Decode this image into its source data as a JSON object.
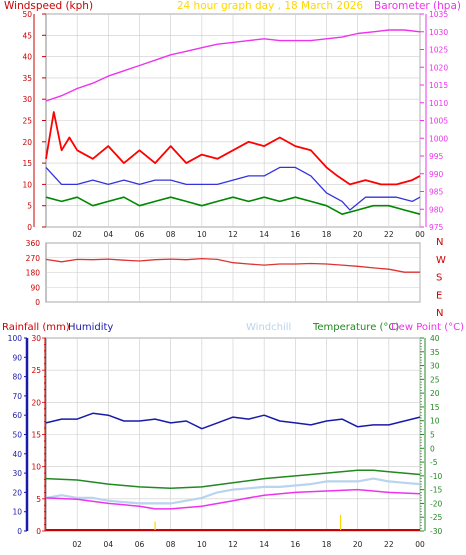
{
  "chart_data": {
    "type": "line",
    "title": "24 hour graph day , 18 March 2026",
    "x_ticks": [
      "02",
      "04",
      "06",
      "08",
      "10",
      "12",
      "14",
      "16",
      "18",
      "20",
      "22",
      "00"
    ],
    "x_range_hours": [
      0,
      24
    ],
    "colors": {
      "title": "#ffd700",
      "wind_axis": "#cc0000",
      "wind_gust": "#ff0000",
      "wind_avg": "#3333dd",
      "wind_min": "#008800",
      "barometer": "#ee33ee",
      "wind_direction": "#dd3333",
      "rainfall": "#cc0000",
      "humidity": "#1a1aaa",
      "windchill": "#b8d4ee",
      "temperature": "#228822",
      "dew_point": "#ee33ee",
      "compass": "#cc0000",
      "grid": "#cccccc",
      "plot_bg": "#ffffff"
    },
    "wind_panel": {
      "left_label": "Windspeed (kph)",
      "right_label": "Barometer (hpa)",
      "wind_ylim": [
        0,
        50
      ],
      "wind_ticks": [
        "0",
        "5",
        "10",
        "15",
        "20",
        "25",
        "30",
        "35",
        "40",
        "45",
        "50"
      ],
      "baro_ylim": [
        975,
        1035
      ],
      "baro_ticks": [
        "975",
        "980",
        "985",
        "990",
        "995",
        "1000",
        "1005",
        "1010",
        "1015",
        "1020",
        "1025",
        "1030",
        "1035"
      ],
      "series": [
        {
          "key": "gust",
          "points": [
            [
              0.0,
              16
            ],
            [
              0.5,
              27
            ],
            [
              1.0,
              18
            ],
            [
              1.5,
              21
            ],
            [
              2.0,
              18
            ],
            [
              3.0,
              16
            ],
            [
              4.0,
              19
            ],
            [
              5.0,
              15
            ],
            [
              6.0,
              18
            ],
            [
              7.0,
              15
            ],
            [
              8.0,
              19
            ],
            [
              9.0,
              15
            ],
            [
              10.0,
              17
            ],
            [
              11.0,
              16
            ],
            [
              12.0,
              18
            ],
            [
              13.0,
              20
            ],
            [
              14.0,
              19
            ],
            [
              15.0,
              21
            ],
            [
              16.0,
              19
            ],
            [
              17.0,
              18
            ],
            [
              18.0,
              14
            ],
            [
              18.7,
              12
            ],
            [
              19.5,
              10
            ],
            [
              20.5,
              11
            ],
            [
              21.5,
              10
            ],
            [
              22.5,
              10
            ],
            [
              23.5,
              11
            ],
            [
              24.0,
              12
            ]
          ]
        },
        {
          "key": "avg",
          "points": [
            [
              0.0,
              14
            ],
            [
              1.0,
              10
            ],
            [
              2.0,
              10
            ],
            [
              3.0,
              11
            ],
            [
              4.0,
              10
            ],
            [
              5.0,
              11
            ],
            [
              6.0,
              10
            ],
            [
              7.0,
              11
            ],
            [
              8.0,
              11
            ],
            [
              9.0,
              10
            ],
            [
              10.0,
              10
            ],
            [
              11.0,
              10
            ],
            [
              12.0,
              11
            ],
            [
              13.0,
              12
            ],
            [
              14.0,
              12
            ],
            [
              15.0,
              14
            ],
            [
              16.0,
              14
            ],
            [
              17.0,
              12
            ],
            [
              18.0,
              8
            ],
            [
              19.0,
              6
            ],
            [
              19.5,
              4
            ],
            [
              20.5,
              7
            ],
            [
              21.5,
              7
            ],
            [
              22.5,
              7
            ],
            [
              23.5,
              6
            ],
            [
              24.0,
              7
            ]
          ]
        },
        {
          "key": "min",
          "points": [
            [
              0.0,
              7
            ],
            [
              1.0,
              6
            ],
            [
              2.0,
              7
            ],
            [
              3.0,
              5
            ],
            [
              4.0,
              6
            ],
            [
              5.0,
              7
            ],
            [
              6.0,
              5
            ],
            [
              7.0,
              6
            ],
            [
              8.0,
              7
            ],
            [
              9.0,
              6
            ],
            [
              10.0,
              5
            ],
            [
              11.0,
              6
            ],
            [
              12.0,
              7
            ],
            [
              13.0,
              6
            ],
            [
              14.0,
              7
            ],
            [
              15.0,
              6
            ],
            [
              16.0,
              7
            ],
            [
              17.0,
              6
            ],
            [
              18.0,
              5
            ],
            [
              19.0,
              3
            ],
            [
              20.0,
              4
            ],
            [
              21.0,
              5
            ],
            [
              22.0,
              5
            ],
            [
              23.0,
              4
            ],
            [
              24.0,
              3
            ]
          ]
        },
        {
          "key": "barometer",
          "points": [
            [
              0.0,
              1010.5
            ],
            [
              1.0,
              1012
            ],
            [
              2.0,
              1014
            ],
            [
              3.0,
              1015.5
            ],
            [
              4.0,
              1017.5
            ],
            [
              5.0,
              1019
            ],
            [
              6.0,
              1020.5
            ],
            [
              7.0,
              1022
            ],
            [
              8.0,
              1023.5
            ],
            [
              9.0,
              1024.5
            ],
            [
              10.0,
              1025.5
            ],
            [
              11.0,
              1026.5
            ],
            [
              12.0,
              1027
            ],
            [
              13.0,
              1027.5
            ],
            [
              14.0,
              1028
            ],
            [
              15.0,
              1027.5
            ],
            [
              16.0,
              1027.5
            ],
            [
              17.0,
              1027.5
            ],
            [
              18.0,
              1028
            ],
            [
              19.0,
              1028.5
            ],
            [
              20.0,
              1029.5
            ],
            [
              21.0,
              1030
            ],
            [
              22.0,
              1030.5
            ],
            [
              23.0,
              1030.5
            ],
            [
              24.0,
              1030
            ]
          ]
        }
      ]
    },
    "direction_panel": {
      "ylim": [
        0,
        360
      ],
      "ticks": [
        "0",
        "90",
        "180",
        "270",
        "360"
      ],
      "compass": [
        "N",
        "W",
        "S",
        "E",
        "N"
      ],
      "series": [
        {
          "key": "direction",
          "points": [
            [
              0.0,
              260
            ],
            [
              1.0,
              245
            ],
            [
              2.0,
              260
            ],
            [
              3.0,
              258
            ],
            [
              4.0,
              262
            ],
            [
              5.0,
              255
            ],
            [
              6.0,
              250
            ],
            [
              7.0,
              258
            ],
            [
              8.0,
              262
            ],
            [
              9.0,
              258
            ],
            [
              10.0,
              265
            ],
            [
              11.0,
              260
            ],
            [
              12.0,
              240
            ],
            [
              13.0,
              232
            ],
            [
              14.0,
              225
            ],
            [
              15.0,
              232
            ],
            [
              16.0,
              232
            ],
            [
              17.0,
              235
            ],
            [
              18.0,
              232
            ],
            [
              19.0,
              225
            ],
            [
              20.0,
              218
            ],
            [
              21.0,
              208
            ],
            [
              22.0,
              200
            ],
            [
              23.0,
              182
            ],
            [
              24.0,
              182
            ]
          ]
        }
      ]
    },
    "bottom_panel": {
      "labels": [
        "Rainfall (mm)",
        "Humidity",
        "Windchill",
        "Temperature (°C)",
        "Dew Point (°C)"
      ],
      "humidity_ticks": [
        "0",
        "10",
        "20",
        "30",
        "40",
        "50",
        "60",
        "70",
        "80",
        "90",
        "100"
      ],
      "rain_ylim": [
        0,
        30
      ],
      "rain_ticks": [
        "0",
        "5",
        "10",
        "15",
        "20",
        "25",
        "30"
      ],
      "temp_ylim": [
        -30,
        40
      ],
      "temp_ticks": [
        "-30",
        "-25",
        "-20",
        "-15",
        "-10",
        "-5",
        "0",
        "5",
        "10",
        "15",
        "20",
        "25",
        "30",
        "35",
        "40"
      ],
      "series": [
        {
          "key": "humidity",
          "points": [
            [
              0.0,
              56
            ],
            [
              1.0,
              58
            ],
            [
              2.0,
              58
            ],
            [
              3.0,
              61
            ],
            [
              4.0,
              60
            ],
            [
              5.0,
              57
            ],
            [
              6.0,
              57
            ],
            [
              7.0,
              58
            ],
            [
              8.0,
              56
            ],
            [
              9.0,
              57
            ],
            [
              10.0,
              53
            ],
            [
              11.0,
              56
            ],
            [
              12.0,
              59
            ],
            [
              13.0,
              58
            ],
            [
              14.0,
              60
            ],
            [
              15.0,
              57
            ],
            [
              16.0,
              56
            ],
            [
              17.0,
              55
            ],
            [
              18.0,
              57
            ],
            [
              19.0,
              58
            ],
            [
              20.0,
              54
            ],
            [
              21.0,
              55
            ],
            [
              22.0,
              55
            ],
            [
              23.0,
              57
            ],
            [
              24.0,
              59
            ]
          ]
        },
        {
          "key": "temperature",
          "points": [
            [
              0.0,
              -11
            ],
            [
              2.0,
              -11.5
            ],
            [
              4.0,
              -13
            ],
            [
              6.0,
              -14
            ],
            [
              8.0,
              -14.5
            ],
            [
              10.0,
              -14
            ],
            [
              12.0,
              -12.5
            ],
            [
              14.0,
              -11
            ],
            [
              16.0,
              -10
            ],
            [
              18.0,
              -9
            ],
            [
              20.0,
              -8
            ],
            [
              21.0,
              -8
            ],
            [
              22.0,
              -8.5
            ],
            [
              23.0,
              -9
            ],
            [
              24.0,
              -9.5
            ]
          ]
        },
        {
          "key": "windchill",
          "points": [
            [
              0.0,
              -18
            ],
            [
              1.0,
              -17
            ],
            [
              2.0,
              -18
            ],
            [
              3.0,
              -18
            ],
            [
              4.0,
              -19
            ],
            [
              5.0,
              -19.5
            ],
            [
              6.0,
              -20
            ],
            [
              7.0,
              -20
            ],
            [
              8.0,
              -20
            ],
            [
              9.0,
              -19
            ],
            [
              10.0,
              -18
            ],
            [
              11.0,
              -16
            ],
            [
              12.0,
              -15
            ],
            [
              13.0,
              -14.5
            ],
            [
              14.0,
              -14
            ],
            [
              15.0,
              -14
            ],
            [
              16.0,
              -13.5
            ],
            [
              17.0,
              -13
            ],
            [
              18.0,
              -12
            ],
            [
              19.0,
              -12
            ],
            [
              20.0,
              -12
            ],
            [
              21.0,
              -11
            ],
            [
              22.0,
              -12
            ],
            [
              23.0,
              -12.5
            ],
            [
              24.0,
              -13
            ]
          ]
        },
        {
          "key": "dew_point",
          "points": [
            [
              0.0,
              -18
            ],
            [
              2.0,
              -18.5
            ],
            [
              4.0,
              -20
            ],
            [
              6.0,
              -21
            ],
            [
              7.0,
              -22
            ],
            [
              8.0,
              -22
            ],
            [
              10.0,
              -21
            ],
            [
              12.0,
              -19
            ],
            [
              13.0,
              -18
            ],
            [
              14.0,
              -17
            ],
            [
              16.0,
              -16
            ],
            [
              18.0,
              -15.5
            ],
            [
              20.0,
              -15
            ],
            [
              22.0,
              -16
            ],
            [
              24.0,
              -16.5
            ]
          ]
        },
        {
          "key": "rainfall",
          "points": [
            [
              0.0,
              0
            ],
            [
              24.0,
              0
            ]
          ]
        }
      ],
      "markers": [
        {
          "x": 7.0,
          "height_mm": 1.5
        },
        {
          "x": 18.9,
          "height_mm": 2.5
        }
      ]
    }
  }
}
